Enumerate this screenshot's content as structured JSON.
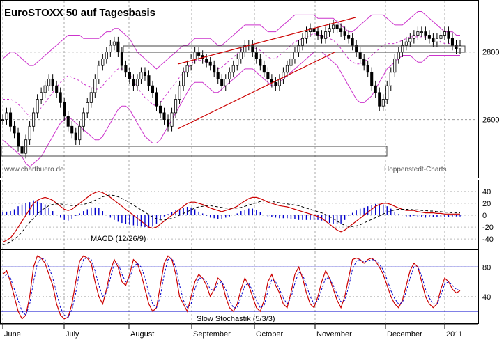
{
  "chart_data": [
    {
      "panel": "price",
      "type": "candlestick",
      "title": "EuroSTOXX 50 auf Tagesbasis",
      "source_left": "www.chartbuero.de",
      "source_right": "Hoppenstedt-Charts",
      "y_ticks": [
        2600,
        2800
      ],
      "ylim": [
        2430,
        2950
      ],
      "grid": true,
      "series": [
        {
          "role": "close",
          "values": [
            2600,
            2620,
            2580,
            2560,
            2520,
            2500,
            2540,
            2580,
            2620,
            2660,
            2680,
            2700,
            2720,
            2700,
            2680,
            2650,
            2610,
            2580,
            2560,
            2540,
            2580,
            2620,
            2650,
            2680,
            2720,
            2760,
            2780,
            2800,
            2820,
            2830,
            2800,
            2760,
            2740,
            2720,
            2700,
            2720,
            2740,
            2730,
            2700,
            2680,
            2640,
            2620,
            2600,
            2580,
            2620,
            2660,
            2700,
            2740,
            2760,
            2780,
            2800,
            2790,
            2780,
            2770,
            2760,
            2740,
            2720,
            2700,
            2720,
            2740,
            2760,
            2780,
            2800,
            2820,
            2820,
            2800,
            2780,
            2760,
            2740,
            2720,
            2710,
            2700,
            2720,
            2740,
            2760,
            2780,
            2800,
            2820,
            2840,
            2860,
            2870,
            2860,
            2850,
            2840,
            2860,
            2870,
            2880,
            2870,
            2860,
            2850,
            2840,
            2820,
            2800,
            2780,
            2760,
            2740,
            2700,
            2680,
            2640,
            2660,
            2700,
            2740,
            2780,
            2800,
            2820,
            2830,
            2840,
            2850,
            2860,
            2860,
            2850,
            2840,
            2830,
            2840,
            2850,
            2860,
            2840,
            2820,
            2810,
            2820
          ]
        },
        {
          "role": "bollinger_upper",
          "values": [
            2780,
            2790,
            2800,
            2800,
            2790,
            2780,
            2770,
            2760,
            2760,
            2770,
            2780,
            2790,
            2800,
            2810,
            2820,
            2830,
            2840,
            2850,
            2850,
            2850,
            2850,
            2840,
            2840,
            2840,
            2840,
            2840,
            2850,
            2860,
            2860,
            2870,
            2870,
            2860,
            2850,
            2840,
            2820,
            2800,
            2790,
            2780,
            2770,
            2760,
            2750,
            2760,
            2770,
            2780,
            2790,
            2800,
            2810,
            2820,
            2820,
            2830,
            2840,
            2840,
            2840,
            2840,
            2840,
            2830,
            2820,
            2820,
            2830,
            2840,
            2850,
            2860,
            2870,
            2880,
            2880,
            2880,
            2880,
            2880,
            2870,
            2860,
            2860,
            2860,
            2870,
            2880,
            2890,
            2900,
            2910,
            2910,
            2910,
            2910,
            2910,
            2910,
            2900,
            2900,
            2900,
            2900,
            2900,
            2890,
            2880,
            2870,
            2860,
            2860,
            2870,
            2880,
            2890,
            2900,
            2910,
            2910,
            2910,
            2910,
            2900,
            2890,
            2880,
            2880,
            2880,
            2890,
            2900,
            2910,
            2920,
            2920,
            2910,
            2900,
            2890,
            2880,
            2870,
            2860,
            2860,
            2860,
            2850,
            2850
          ]
        },
        {
          "role": "bollinger_lower",
          "values": [
            2540,
            2530,
            2520,
            2510,
            2500,
            2490,
            2470,
            2460,
            2470,
            2480,
            2490,
            2510,
            2530,
            2550,
            2570,
            2590,
            2600,
            2610,
            2600,
            2590,
            2580,
            2570,
            2560,
            2550,
            2540,
            2540,
            2550,
            2570,
            2590,
            2610,
            2630,
            2640,
            2640,
            2630,
            2610,
            2590,
            2570,
            2550,
            2540,
            2530,
            2530,
            2540,
            2560,
            2580,
            2600,
            2620,
            2640,
            2660,
            2680,
            2700,
            2710,
            2710,
            2710,
            2700,
            2690,
            2680,
            2680,
            2690,
            2700,
            2710,
            2720,
            2730,
            2740,
            2750,
            2750,
            2750,
            2740,
            2730,
            2720,
            2710,
            2700,
            2700,
            2710,
            2720,
            2730,
            2740,
            2750,
            2760,
            2770,
            2780,
            2790,
            2800,
            2800,
            2800,
            2790,
            2780,
            2770,
            2760,
            2740,
            2720,
            2700,
            2680,
            2660,
            2650,
            2650,
            2660,
            2670,
            2690,
            2710,
            2730,
            2750,
            2760,
            2770,
            2780,
            2790,
            2790,
            2790,
            2780,
            2770,
            2770,
            2780,
            2790,
            2790,
            2790,
            2790,
            2790,
            2790,
            2790,
            2790,
            2790
          ]
        }
      ]
    },
    {
      "panel": "macd",
      "type": "line",
      "label": "MACD (12/26/9)",
      "y_ticks": [
        40,
        20,
        0,
        -20,
        -40
      ],
      "ylim": [
        -55,
        55
      ],
      "series": [
        {
          "role": "macd",
          "values": [
            -45,
            -42,
            -38,
            -30,
            -20,
            -10,
            0,
            10,
            20,
            25,
            28,
            30,
            28,
            25,
            20,
            15,
            10,
            8,
            10,
            15,
            20,
            25,
            30,
            35,
            38,
            40,
            38,
            34,
            30,
            25,
            20,
            15,
            10,
            5,
            0,
            -5,
            -10,
            -15,
            -20,
            -22,
            -20,
            -15,
            -10,
            -5,
            0,
            5,
            10,
            15,
            20,
            22,
            22,
            20,
            18,
            15,
            12,
            10,
            8,
            6,
            8,
            10,
            12,
            15,
            20,
            24,
            28,
            30,
            30,
            28,
            25,
            22,
            20,
            18,
            16,
            15,
            14,
            12,
            10,
            8,
            6,
            4,
            2,
            0,
            -2,
            -5,
            -10,
            -15,
            -20,
            -25,
            -28,
            -25,
            -20,
            -15,
            -10,
            -5,
            0,
            5,
            10,
            15,
            18,
            20,
            20,
            18,
            15,
            12,
            10,
            8,
            8,
            8,
            6,
            5,
            4,
            4,
            4,
            3,
            3,
            2,
            2,
            2,
            2,
            2
          ]
        },
        {
          "role": "signal",
          "values": [
            -50,
            -48,
            -45,
            -40,
            -35,
            -28,
            -20,
            -12,
            -5,
            2,
            8,
            12,
            16,
            18,
            19,
            19,
            18,
            17,
            16,
            16,
            17,
            18,
            20,
            22,
            25,
            28,
            31,
            33,
            34,
            33,
            31,
            28,
            25,
            21,
            17,
            13,
            9,
            5,
            1,
            -3,
            -6,
            -8,
            -8,
            -7,
            -5,
            -3,
            0,
            3,
            6,
            9,
            12,
            14,
            15,
            16,
            16,
            15,
            14,
            13,
            12,
            12,
            12,
            12,
            13,
            15,
            17,
            19,
            21,
            23,
            24,
            24,
            23,
            22,
            21,
            20,
            19,
            18,
            17,
            16,
            14,
            12,
            10,
            8,
            6,
            4,
            1,
            -2,
            -6,
            -10,
            -14,
            -17,
            -19,
            -19,
            -18,
            -16,
            -13,
            -10,
            -7,
            -4,
            -1,
            2,
            5,
            7,
            9,
            10,
            10,
            10,
            10,
            9,
            9,
            8,
            8,
            7,
            7,
            6,
            6,
            5,
            5,
            4,
            4,
            4
          ]
        }
      ]
    },
    {
      "panel": "stochastic",
      "type": "line",
      "label": "Slow Stochastik (5/3/3)",
      "y_ticks": [
        80,
        40
      ],
      "ylim": [
        5,
        100
      ],
      "reference_lines": [
        80,
        20
      ],
      "series": [
        {
          "role": "k",
          "values": [
            70,
            75,
            60,
            40,
            20,
            10,
            15,
            40,
            80,
            95,
            92,
            85,
            70,
            55,
            30,
            15,
            10,
            12,
            30,
            60,
            88,
            95,
            92,
            85,
            60,
            40,
            30,
            50,
            75,
            90,
            80,
            60,
            55,
            70,
            90,
            85,
            70,
            50,
            30,
            20,
            25,
            55,
            85,
            95,
            90,
            70,
            40,
            30,
            20,
            40,
            60,
            70,
            65,
            55,
            40,
            50,
            65,
            60,
            40,
            25,
            20,
            30,
            50,
            65,
            55,
            40,
            25,
            20,
            35,
            60,
            70,
            55,
            45,
            30,
            25,
            45,
            70,
            80,
            65,
            45,
            30,
            25,
            40,
            60,
            75,
            65,
            50,
            35,
            25,
            40,
            65,
            90,
            92,
            90,
            85,
            90,
            92,
            88,
            80,
            70,
            55,
            40,
            30,
            25,
            35,
            55,
            75,
            85,
            80,
            60,
            40,
            30,
            25,
            30,
            50,
            65,
            60,
            50,
            45,
            48
          ]
        },
        {
          "role": "d",
          "values": [
            65,
            70,
            65,
            50,
            35,
            20,
            15,
            30,
            60,
            85,
            92,
            90,
            80,
            65,
            45,
            25,
            15,
            12,
            22,
            45,
            75,
            90,
            93,
            90,
            75,
            55,
            40,
            45,
            65,
            85,
            85,
            70,
            60,
            65,
            80,
            85,
            80,
            65,
            45,
            30,
            25,
            40,
            70,
            90,
            92,
            80,
            55,
            35,
            25,
            30,
            50,
            65,
            65,
            60,
            50,
            48,
            58,
            60,
            50,
            35,
            25,
            25,
            40,
            55,
            58,
            48,
            35,
            25,
            28,
            48,
            63,
            60,
            50,
            38,
            30,
            38,
            58,
            73,
            70,
            55,
            40,
            30,
            35,
            50,
            65,
            65,
            55,
            43,
            33,
            35,
            53,
            77,
            88,
            90,
            87,
            88,
            90,
            89,
            84,
            76,
            63,
            48,
            37,
            30,
            32,
            47,
            65,
            80,
            80,
            68,
            50,
            38,
            30,
            30,
            42,
            57,
            60,
            55,
            50,
            48
          ]
        }
      ]
    },
    {
      "panel": "x_axis",
      "type": "axis",
      "x_labels": [
        "June",
        "July",
        "August",
        "September",
        "October",
        "November",
        "December",
        "2011"
      ]
    }
  ],
  "colors": {
    "candle_up": "#ffffff",
    "candle_down": "#000000",
    "bollinger": "#cc33cc",
    "moving_average": "#cc33cc",
    "trendline": "#cc0000",
    "macd": "#cc0000",
    "signal": "#000000",
    "histogram": "#0000cc",
    "stoch_k": "#cc0000",
    "stoch_d": "#0000cc",
    "reference": "#0000cc"
  }
}
